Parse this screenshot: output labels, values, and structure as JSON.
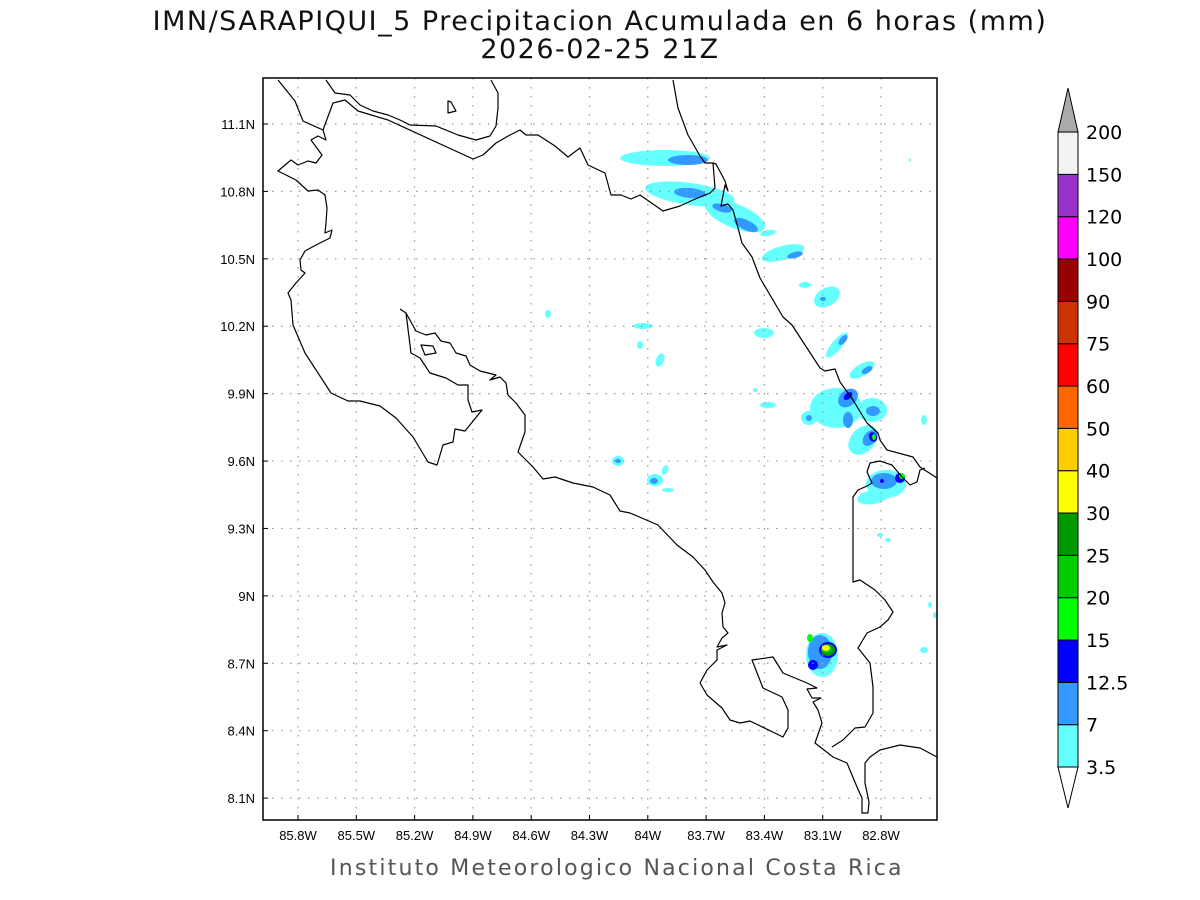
{
  "title": "IMN/SARAPIQUI_5 Precipitacion Acumulada en 6 horas (mm)",
  "subtitle": "2026-02-25 21Z",
  "footer": "Instituto Meteorologico Nacional Costa Rica",
  "map": {
    "lat_labels": [
      "11.1N",
      "10.8N",
      "10.5N",
      "10.2N",
      "9.9N",
      "9.6N",
      "9.3N",
      "9N",
      "8.7N",
      "8.4N",
      "8.1N"
    ],
    "lon_labels": [
      "85.8W",
      "85.5W",
      "85.2W",
      "84.9W",
      "84.6W",
      "84.3W",
      "84W",
      "83.7W",
      "83.4W",
      "83.1W",
      "82.8W"
    ],
    "lat_range": [
      8.0,
      11.3
    ],
    "lon_range": [
      -86.0,
      -82.5
    ]
  },
  "colorbar": {
    "levels": [
      "3.5",
      "7",
      "12.5",
      "15",
      "20",
      "25",
      "30",
      "40",
      "50",
      "60",
      "75",
      "90",
      "100",
      "120",
      "150",
      "200"
    ],
    "colors": [
      "#66ffff",
      "#3399ff",
      "#0000ff",
      "#00ff00",
      "#00cc00",
      "#009900",
      "#ffff00",
      "#ffcc00",
      "#ff6600",
      "#ff0000",
      "#cc3300",
      "#990000",
      "#ff00ff",
      "#9933cc",
      "#f2f2f2"
    ],
    "over_color": "#aaaaaa",
    "under_color": "#ffffff"
  }
}
